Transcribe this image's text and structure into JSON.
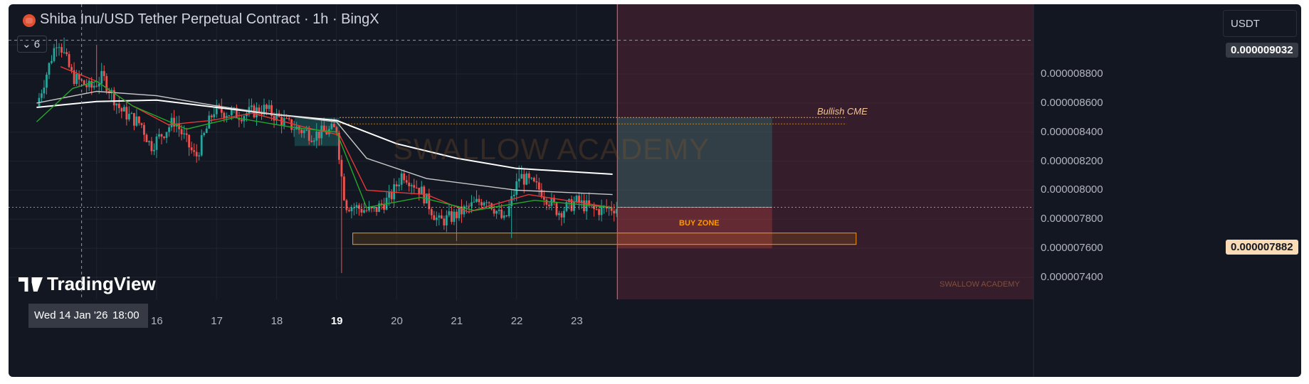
{
  "header": {
    "title": "Shiba Inu/USD Tether Perpetual Contract · 1h · BingX",
    "collapse_count": "6",
    "currency": "USDT"
  },
  "price_axis": {
    "labels": [
      "0.000008800",
      "0.000008600",
      "0.000008400",
      "0.000008200",
      "0.000008000",
      "0.000007800",
      "0.000007600",
      "0.000007400"
    ],
    "crosshair_price": "0.000009032",
    "last_price": "0.000007882"
  },
  "time_axis": {
    "crosshair_date": "Wed 14 Jan '26",
    "crosshair_time": "18:00",
    "labels": [
      "16",
      "17",
      "18",
      "19",
      "20",
      "21",
      "22",
      "23"
    ]
  },
  "annotations": {
    "bullish_cme": "Bullish CME",
    "buy_zone": "BUY ZONE",
    "watermark": "SWALLOW ACADEMY",
    "watermark_small": "SWALLOW ACADEMY"
  },
  "branding": {
    "logo_text": "TradingView"
  },
  "colors": {
    "background": "#131722",
    "up": "#26a69a",
    "down": "#ef5350",
    "ema_fast": "#e53935",
    "ema_mid": "#22a82a",
    "sma_slow": "#ffffff",
    "sma_mid": "#c8c8c8",
    "buy_zone": "#ff9800",
    "long_target": "rgba(38,166,154,0.25)",
    "long_stop": "rgba(239,83,80,0.25)"
  },
  "chart_data": {
    "type": "candlestick",
    "symbol": "SHIBUSDT.P",
    "timeframe": "1h",
    "x_labels": [
      "16",
      "17",
      "18",
      "19",
      "20",
      "21",
      "22",
      "23"
    ],
    "ylim": [
      7.3e-06,
      9.1e-06
    ],
    "price_path_anchors": [
      {
        "day": 14.0,
        "close": 8.58e-06
      },
      {
        "day": 14.35,
        "close": 9.05e-06
      },
      {
        "day": 14.6,
        "close": 8.78e-06
      },
      {
        "day": 14.9,
        "close": 8.7e-06
      },
      {
        "day": 15.1,
        "close": 8.78e-06
      },
      {
        "day": 15.4,
        "close": 8.55e-06
      },
      {
        "day": 15.75,
        "close": 8.45e-06
      },
      {
        "day": 15.9,
        "close": 8.3e-06
      },
      {
        "day": 16.3,
        "close": 8.48e-06
      },
      {
        "day": 16.65,
        "close": 8.22e-06
      },
      {
        "day": 16.95,
        "close": 8.55e-06
      },
      {
        "day": 17.4,
        "close": 8.52e-06
      },
      {
        "day": 17.8,
        "close": 8.56e-06
      },
      {
        "day": 18.2,
        "close": 8.45e-06
      },
      {
        "day": 18.6,
        "close": 8.38e-06
      },
      {
        "day": 19.0,
        "close": 8.42e-06
      },
      {
        "day": 19.08,
        "close": 8.1e-06
      },
      {
        "day": 19.15,
        "close": 7.9e-06
      },
      {
        "day": 19.6,
        "close": 7.85e-06
      },
      {
        "day": 19.9,
        "close": 7.95e-06
      },
      {
        "day": 20.1,
        "close": 8.12e-06
      },
      {
        "day": 20.4,
        "close": 8e-06
      },
      {
        "day": 20.7,
        "close": 7.78e-06
      },
      {
        "day": 20.95,
        "close": 7.82e-06
      },
      {
        "day": 21.2,
        "close": 7.88e-06
      },
      {
        "day": 21.5,
        "close": 7.95e-06
      },
      {
        "day": 21.8,
        "close": 7.78e-06
      },
      {
        "day": 22.05,
        "close": 8.1e-06
      },
      {
        "day": 22.4,
        "close": 8e-06
      },
      {
        "day": 22.7,
        "close": 7.85e-06
      },
      {
        "day": 23.0,
        "close": 7.92e-06
      },
      {
        "day": 23.3,
        "close": 7.86e-06
      },
      {
        "day": 23.6,
        "close": 7.88e-06
      }
    ],
    "notable_wicks": [
      {
        "day": 14.45,
        "high": 9.05e-06
      },
      {
        "day": 15.0,
        "high": 9e-06
      },
      {
        "day": 19.1,
        "low": 7.43e-06
      },
      {
        "day": 21.0,
        "low": 7.65e-06
      },
      {
        "day": 21.9,
        "low": 7.67e-06
      },
      {
        "day": 22.05,
        "high": 8.17e-06
      }
    ],
    "moving_averages": [
      {
        "name": "slow",
        "color": "#ffffff",
        "points": [
          [
            14.0,
            8.57e-06
          ],
          [
            15.0,
            8.61e-06
          ],
          [
            16.0,
            8.62e-06
          ],
          [
            17.0,
            8.57e-06
          ],
          [
            18.0,
            8.52e-06
          ],
          [
            19.0,
            8.48e-06
          ],
          [
            20.0,
            8.32e-06
          ],
          [
            21.0,
            8.22e-06
          ],
          [
            22.0,
            8.15e-06
          ],
          [
            23.6,
            8.11e-06
          ]
        ]
      },
      {
        "name": "mid",
        "color": "#c8c8c8",
        "points": [
          [
            14.0,
            8.6e-06
          ],
          [
            15.0,
            8.68e-06
          ],
          [
            16.0,
            8.65e-06
          ],
          [
            17.0,
            8.58e-06
          ],
          [
            18.0,
            8.52e-06
          ],
          [
            19.0,
            8.47e-06
          ],
          [
            19.5,
            8.22e-06
          ],
          [
            20.5,
            8.08e-06
          ],
          [
            22.0,
            8e-06
          ],
          [
            23.6,
            7.97e-06
          ]
        ]
      },
      {
        "name": "ema_fast",
        "color": "#e53935",
        "points": [
          [
            14.4,
            8.85e-06
          ],
          [
            15.0,
            8.75e-06
          ],
          [
            15.6,
            8.58e-06
          ],
          [
            16.2,
            8.45e-06
          ],
          [
            16.9,
            8.48e-06
          ],
          [
            17.6,
            8.53e-06
          ],
          [
            18.5,
            8.43e-06
          ],
          [
            19.05,
            8.38e-06
          ],
          [
            19.5,
            8e-06
          ],
          [
            20.5,
            7.97e-06
          ],
          [
            21.2,
            7.85e-06
          ],
          [
            22.2,
            7.97e-06
          ],
          [
            23.6,
            7.88e-06
          ]
        ]
      },
      {
        "name": "ema_mid",
        "color": "#22a82a",
        "points": [
          [
            14.0,
            8.47e-06
          ],
          [
            14.6,
            8.7e-06
          ],
          [
            15.0,
            8.75e-06
          ],
          [
            15.6,
            8.58e-06
          ],
          [
            16.5,
            8.42e-06
          ],
          [
            17.3,
            8.5e-06
          ],
          [
            18.3,
            8.43e-06
          ],
          [
            19.0,
            8.4e-06
          ],
          [
            19.5,
            7.88e-06
          ],
          [
            20.4,
            7.95e-06
          ],
          [
            21.3,
            7.86e-06
          ],
          [
            22.3,
            7.93e-06
          ],
          [
            23.6,
            7.88e-06
          ]
        ]
      }
    ],
    "levels": [
      {
        "name": "Bullish CME",
        "value": 8.5e-06
      },
      {
        "name": "BUY ZONE",
        "low": 7.6e-06,
        "high": 7.7e-06
      }
    ],
    "crosshair": {
      "price": 9.032e-06,
      "day": 14.75
    },
    "last_price": 7.882e-06,
    "position": {
      "type": "long",
      "entry": 7.882e-06,
      "target": 8.5e-06,
      "stop_region_bottom": 7.6e-06
    }
  }
}
